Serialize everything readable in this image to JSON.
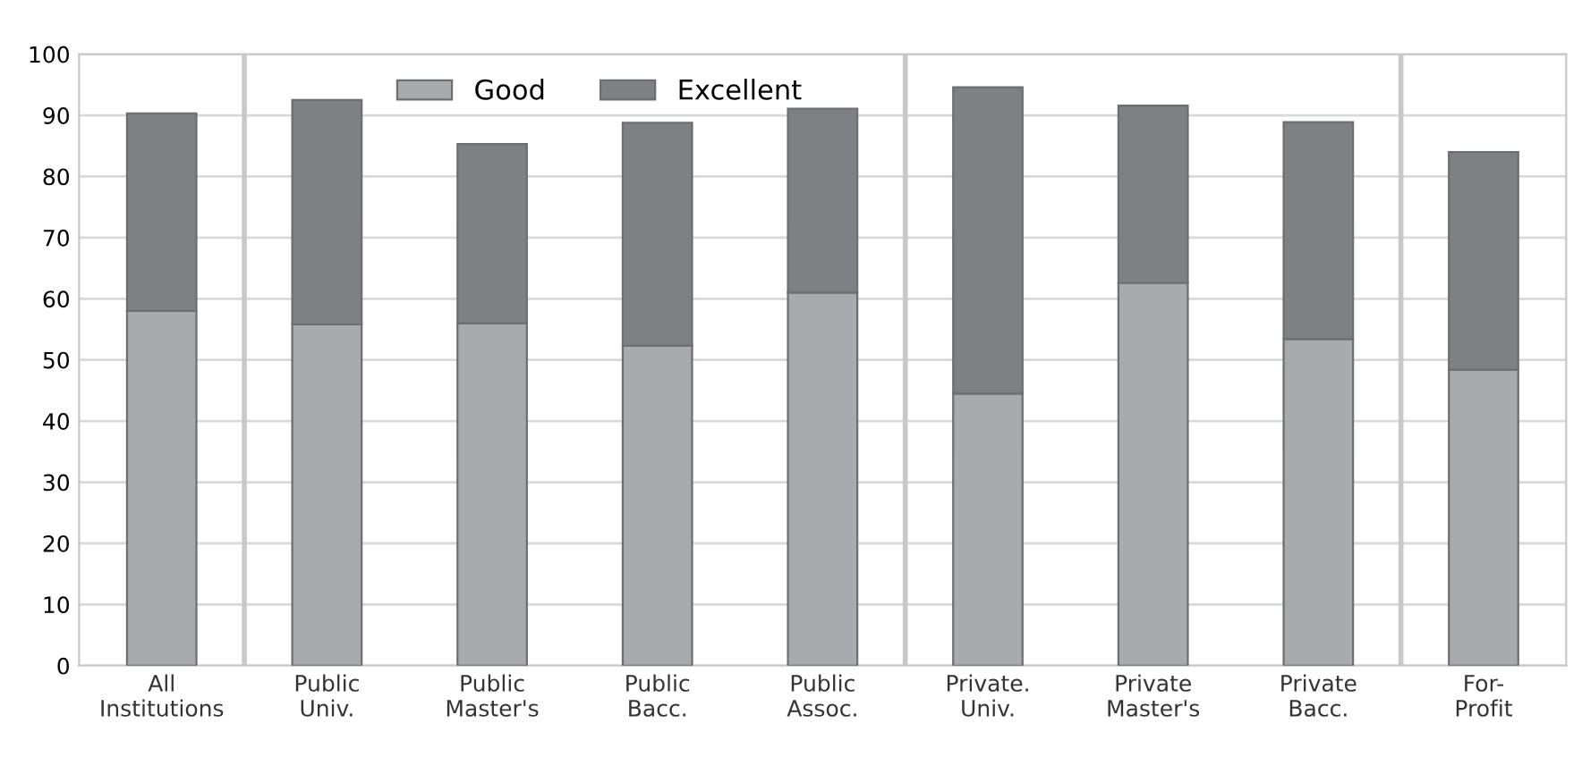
{
  "chart_data": {
    "type": "bar",
    "stacked": true,
    "categories": [
      "All\nInstitutions",
      "Public\nUniv.",
      "Public\nMaster's",
      "Public\nBacc.",
      "Public\nAssoc.",
      "Private.\nUniv.",
      "Private\nMaster's",
      "Private\nBacc.",
      "For-\nProfit"
    ],
    "series": [
      {
        "name": "Good",
        "color": "#a9aaad",
        "values": [
          58,
          55.8,
          56,
          52.3,
          61,
          44.5,
          62.6,
          53.4,
          48.4
        ]
      },
      {
        "name": "Excellent",
        "color": "#7f8084",
        "values": [
          32.3,
          36.7,
          29.3,
          36.5,
          30.1,
          50.1,
          29,
          35.5,
          35.6
        ]
      }
    ],
    "ylim": [
      0,
      100
    ],
    "yticks": [
      0,
      10,
      20,
      30,
      40,
      50,
      60,
      70,
      80,
      90,
      100
    ],
    "grid": "y",
    "legend": "top"
  }
}
